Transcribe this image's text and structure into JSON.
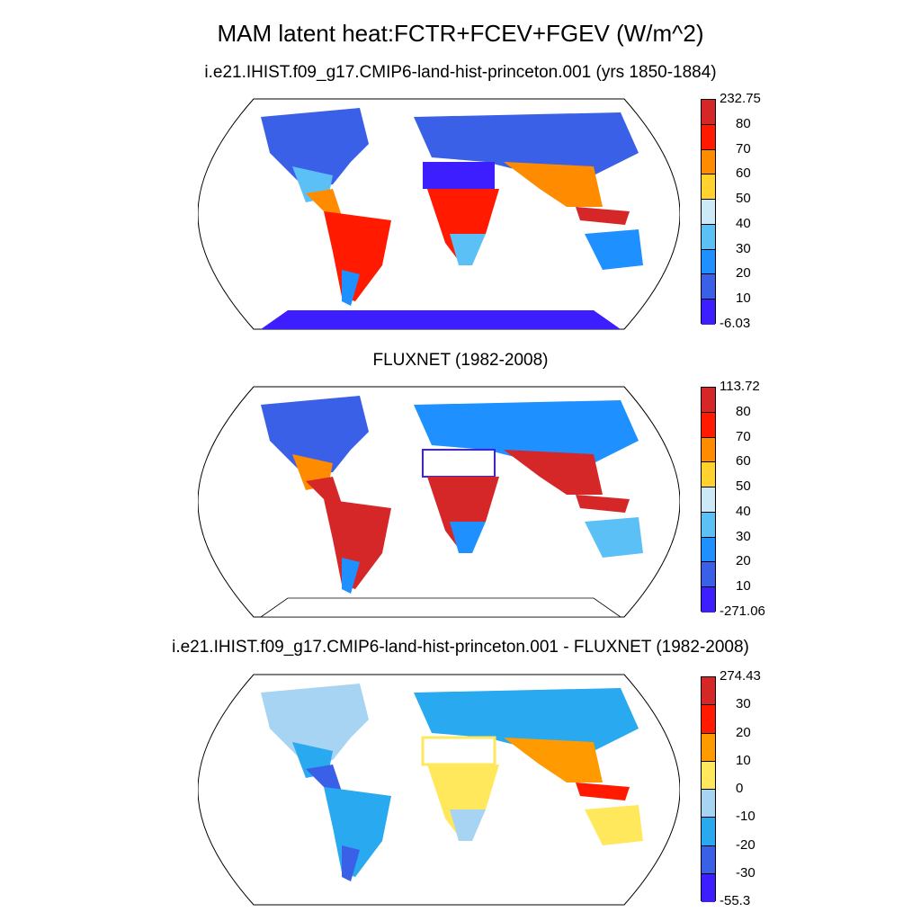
{
  "title": "MAM latent heat:FCTR+FCEV+FGEV (W/m^2)",
  "panels": [
    {
      "subtitle": "i.e21.IHIST.f09_g17.CMIP6-land-hist-princeton.001 (yrs 1850-1884)",
      "colorbar_labels": [
        "232.75",
        "80",
        "70",
        "60",
        "50",
        "40",
        "30",
        "20",
        "10",
        "-6.03"
      ],
      "colors": [
        "#d62728",
        "#ff1a00",
        "#ff8c00",
        "#ffd22e",
        "#cde8f7",
        "#5bc0f5",
        "#1e90ff",
        "#3a60e8",
        "#3c1eff"
      ]
    },
    {
      "subtitle": "FLUXNET (1982-2008)",
      "colorbar_labels": [
        "113.72",
        "80",
        "70",
        "60",
        "50",
        "40",
        "30",
        "20",
        "10",
        "-271.06"
      ],
      "colors": [
        "#d62728",
        "#ff1a00",
        "#ff8c00",
        "#ffd22e",
        "#cde8f7",
        "#5bc0f5",
        "#1e90ff",
        "#3a60e8",
        "#3c1eff"
      ]
    },
    {
      "subtitle": "i.e21.IHIST.f09_g17.CMIP6-land-hist-princeton.001 - FLUXNET (1982-2008)",
      "colorbar_labels": [
        "274.43",
        "30",
        "20",
        "10",
        "0",
        "-10",
        "-20",
        "-30",
        "-55.3"
      ],
      "colors": [
        "#d62728",
        "#ff1a00",
        "#ff9a00",
        "#ffe85c",
        "#a6d4f2",
        "#28a9f0",
        "#3a60e8",
        "#3c1eff"
      ]
    }
  ]
}
